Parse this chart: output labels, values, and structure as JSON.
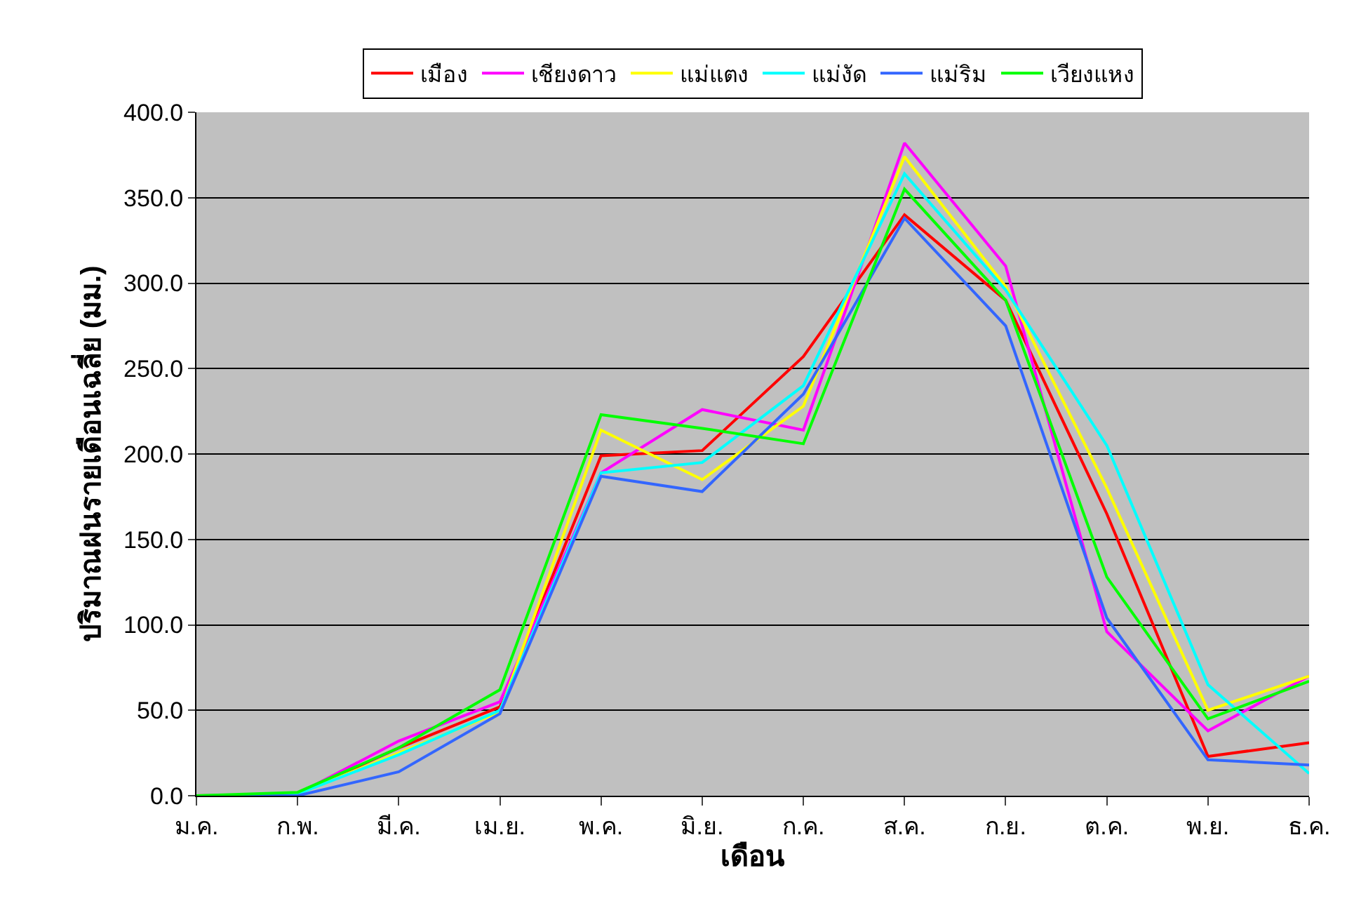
{
  "chart_data": {
    "type": "line",
    "xlabel": "เดือน",
    "ylabel": "ปริมาณฝนรายเดือนเฉลี่ย (มม.)",
    "categories": [
      "ม.ค.",
      "ก.พ.",
      "มี.ค.",
      "เม.ย.",
      "พ.ค.",
      "มิ.ย.",
      "ก.ค.",
      "ส.ค.",
      "ก.ย.",
      "ต.ค.",
      "พ.ย.",
      "ธ.ค."
    ],
    "ylim": [
      0,
      400
    ],
    "yticks": [
      {
        "value": 0,
        "label": "0.0"
      },
      {
        "value": 50,
        "label": "50.0"
      },
      {
        "value": 100,
        "label": "100.0"
      },
      {
        "value": 150,
        "label": "150.0"
      },
      {
        "value": 200,
        "label": "200.0"
      },
      {
        "value": 250,
        "label": "250.0"
      },
      {
        "value": 300,
        "label": "300.0"
      },
      {
        "value": 350,
        "label": "350.0"
      },
      {
        "value": 400,
        "label": "400.0"
      }
    ],
    "grid": "y",
    "legend": "top",
    "marker": "none",
    "line_style": "solid",
    "series": [
      {
        "name": "เมือง",
        "color": "#ff0000",
        "values": [
          0,
          1,
          28,
          52,
          199,
          202,
          257,
          340,
          290,
          165,
          23,
          31
        ]
      },
      {
        "name": "เชียงดาว",
        "color": "#ff00ff",
        "values": [
          0,
          1,
          32,
          55,
          189,
          226,
          214,
          382,
          310,
          96,
          38,
          70
        ]
      },
      {
        "name": "แม่แตง",
        "color": "#ffff00",
        "values": [
          0,
          1,
          25,
          49,
          214,
          185,
          228,
          374,
          298,
          180,
          50,
          70
        ]
      },
      {
        "name": "แม่งัด",
        "color": "#00ffff",
        "values": [
          0,
          1,
          24,
          50,
          189,
          195,
          240,
          364,
          296,
          205,
          65,
          13
        ]
      },
      {
        "name": "แม่ริม",
        "color": "#3366ff",
        "values": [
          0,
          0,
          14,
          48,
          187,
          178,
          235,
          338,
          275,
          104,
          21,
          18
        ]
      },
      {
        "name": "เวียงแหง",
        "color": "#00ff00",
        "values": [
          0,
          2,
          28,
          62,
          223,
          215,
          206,
          355,
          290,
          128,
          45,
          67
        ]
      }
    ]
  }
}
